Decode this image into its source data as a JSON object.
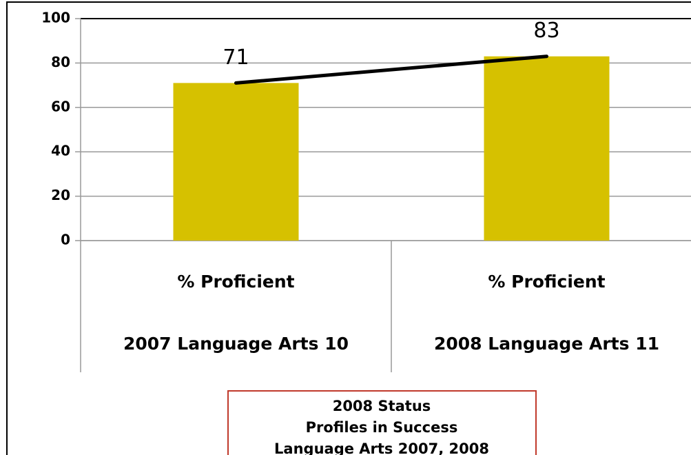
{
  "chart_data": {
    "type": "bar",
    "title": [
      "2008 Status",
      "Profiles in Success",
      "Language Arts 2007, 2008"
    ],
    "categories": [
      "% Proficient",
      "% Proficient"
    ],
    "category_groups": [
      "2007 Language Arts 10",
      "2008 Language Arts 11"
    ],
    "values": [
      71,
      83
    ],
    "color": "#d6c100",
    "line_color": "#000000",
    "ylim": [
      0,
      100
    ],
    "yticks": [
      0,
      20,
      40,
      60,
      80,
      100
    ],
    "grid": true
  }
}
